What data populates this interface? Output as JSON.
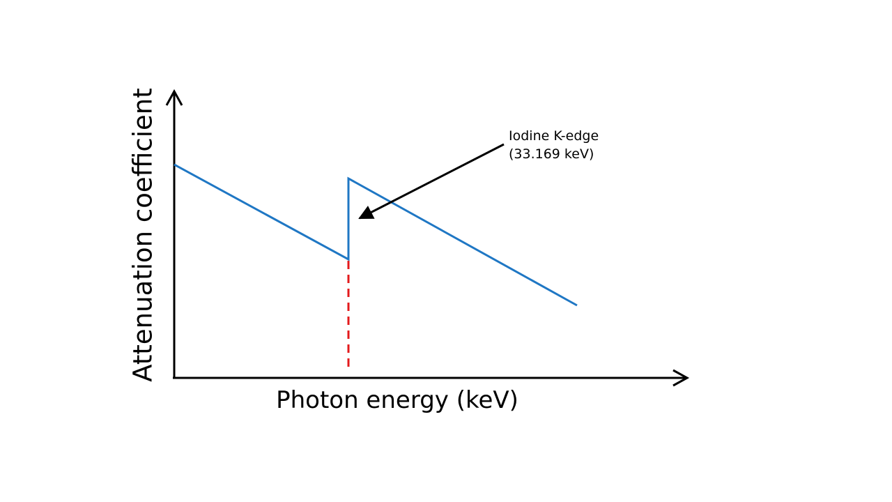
{
  "diagram": {
    "y_axis_label": "Attenuation coefficient",
    "x_axis_label": "Photon energy (keV)",
    "annotation": {
      "line1": "Iodine K-edge",
      "line2": "(33.169 keV)"
    },
    "colors": {
      "axis": "#000000",
      "curve": "#1f77c4",
      "edge_marker": "#e31a1c",
      "arrow": "#000000"
    }
  }
}
